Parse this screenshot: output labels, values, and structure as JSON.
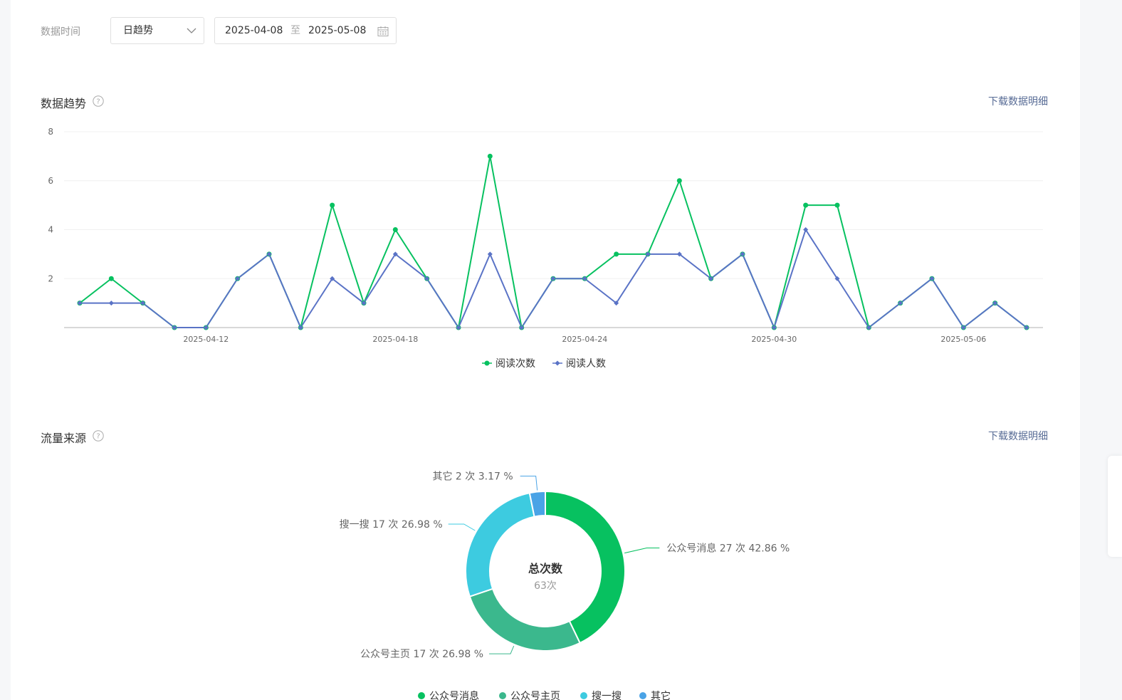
{
  "filter": {
    "label": "数据时间",
    "granularity": "日趋势",
    "date_start": "2025-04-08",
    "date_separator": "至",
    "date_end": "2025-05-08"
  },
  "trend": {
    "title": "数据趋势",
    "download_label": "下载数据明细"
  },
  "traffic": {
    "title": "流量来源",
    "download_label": "下载数据明细",
    "center_title": "总次数",
    "center_value": "63次"
  },
  "colors": {
    "green": "#07c160",
    "blue": "#5a73c6",
    "teal": "#3bb88d",
    "cyan": "#3dcbe0",
    "sky": "#4aa3e6",
    "link": "#576b95"
  },
  "chart_data": [
    {
      "type": "line",
      "x": [
        "2025-04-08",
        "2025-04-09",
        "2025-04-10",
        "2025-04-11",
        "2025-04-12",
        "2025-04-13",
        "2025-04-14",
        "2025-04-15",
        "2025-04-16",
        "2025-04-17",
        "2025-04-18",
        "2025-04-19",
        "2025-04-20",
        "2025-04-21",
        "2025-04-22",
        "2025-04-23",
        "2025-04-24",
        "2025-04-25",
        "2025-04-26",
        "2025-04-27",
        "2025-04-28",
        "2025-04-29",
        "2025-04-30",
        "2025-05-01",
        "2025-05-02",
        "2025-05-03",
        "2025-05-04",
        "2025-05-05",
        "2025-05-06",
        "2025-05-07",
        "2025-05-08"
      ],
      "x_tick_labels": [
        "2025-04-12",
        "2025-04-18",
        "2025-04-24",
        "2025-04-30",
        "2025-05-06"
      ],
      "y_ticks": [
        "2",
        "4",
        "6",
        "8"
      ],
      "ylim": [
        0,
        8
      ],
      "grid": true,
      "legend_position": "bottom",
      "series": [
        {
          "name": "阅读次数",
          "values": [
            1,
            2,
            1,
            0,
            0,
            2,
            3,
            0,
            5,
            1,
            4,
            2,
            0,
            7,
            0,
            2,
            2,
            3,
            3,
            6,
            2,
            3,
            0,
            5,
            5,
            0,
            1,
            2,
            0,
            1,
            0
          ]
        },
        {
          "name": "阅读人数",
          "values": [
            1,
            1,
            1,
            0,
            0,
            2,
            3,
            0,
            2,
            1,
            3,
            2,
            0,
            3,
            0,
            2,
            2,
            1,
            3,
            3,
            2,
            3,
            0,
            4,
            2,
            0,
            1,
            2,
            0,
            1,
            0
          ]
        }
      ]
    },
    {
      "type": "pie",
      "donut": true,
      "legend_position": "bottom",
      "slices": [
        {
          "name": "公众号消息",
          "count": 27,
          "unit": "次",
          "percent": 42.86,
          "label": "公众号消息 27 次 42.86 %"
        },
        {
          "name": "公众号主页",
          "count": 17,
          "unit": "次",
          "percent": 26.98,
          "label": "公众号主页 17 次 26.98 %"
        },
        {
          "name": "搜一搜",
          "count": 17,
          "unit": "次",
          "percent": 26.98,
          "label": "搜一搜 17 次 26.98 %"
        },
        {
          "name": "其它",
          "count": 2,
          "unit": "次",
          "percent": 3.17,
          "label": "其它 2 次 3.17 %"
        }
      ]
    }
  ]
}
